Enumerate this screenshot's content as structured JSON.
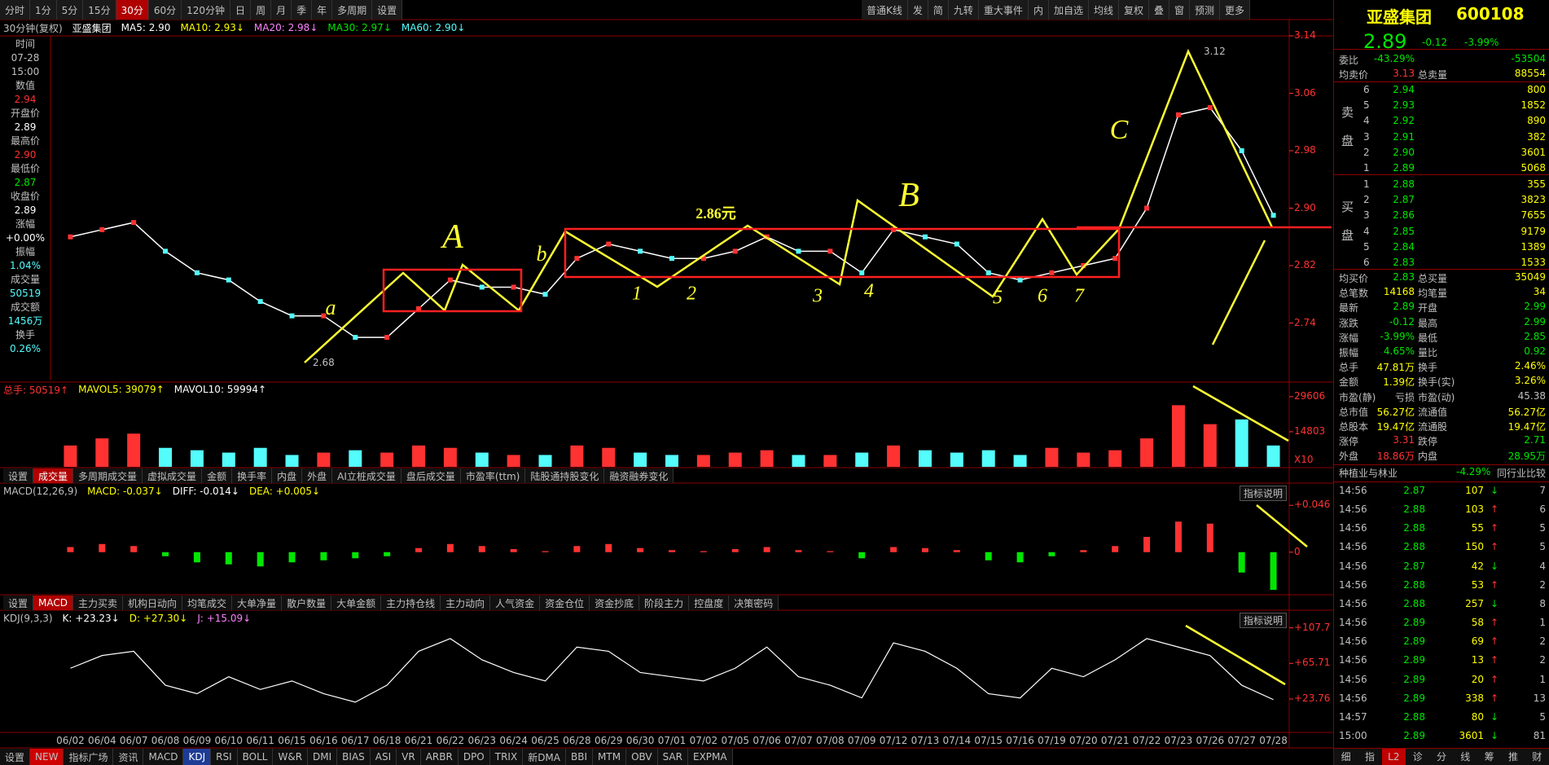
{
  "toolbar": {
    "left": [
      "分时",
      "1分",
      "5分",
      "15分",
      "30分",
      "60分",
      "120分钟",
      "日",
      "周",
      "月",
      "季",
      "年",
      "多周期",
      "设置"
    ],
    "active": 4,
    "right": [
      "普通K线",
      "发",
      "简",
      "九转",
      "重大事件",
      "内",
      "加自选",
      "均线",
      "复权",
      "叠",
      "窗",
      "预测",
      "更多"
    ]
  },
  "chart_header": [
    {
      "text": "30分钟(复权)",
      "color": "#c0c0c0"
    },
    {
      "text": "亚盛集团",
      "color": "#ffffff"
    },
    {
      "text": "MA5: 2.90",
      "color": "#ffffff"
    },
    {
      "text": "MA10: 2.93↓",
      "color": "#ffff00"
    },
    {
      "text": "MA20: 2.98↓",
      "color": "#ff80ff"
    },
    {
      "text": "MA30: 2.97↓",
      "color": "#00e600"
    },
    {
      "text": "MA60: 2.90↓",
      "color": "#54fcfc"
    }
  ],
  "info_panel": [
    {
      "text": "时间",
      "color": "#c0c0c0"
    },
    {
      "text": "07-28",
      "color": "#c0c0c0"
    },
    {
      "text": "15:00",
      "color": "#c0c0c0"
    },
    {
      "text": "数值",
      "color": "#c0c0c0"
    },
    {
      "text": "2.94",
      "color": "#ff3232"
    },
    {
      "text": "开盘价",
      "color": "#c0c0c0"
    },
    {
      "text": "2.89",
      "color": "#ffffff"
    },
    {
      "text": "最高价",
      "color": "#c0c0c0"
    },
    {
      "text": "2.90",
      "color": "#ff3232"
    },
    {
      "text": "最低价",
      "color": "#c0c0c0"
    },
    {
      "text": "2.87",
      "color": "#00e600"
    },
    {
      "text": "收盘价",
      "color": "#c0c0c0"
    },
    {
      "text": "2.89",
      "color": "#ffffff"
    },
    {
      "text": "涨幅",
      "color": "#c0c0c0"
    },
    {
      "text": "+0.00%",
      "color": "#ffffff"
    },
    {
      "text": "振幅",
      "color": "#c0c0c0"
    },
    {
      "text": "1.04%",
      "color": "#54fcfc"
    },
    {
      "text": "成交量",
      "color": "#c0c0c0"
    },
    {
      "text": "50519",
      "color": "#54fcfc"
    },
    {
      "text": "成交额",
      "color": "#c0c0c0"
    },
    {
      "text": "1456万",
      "color": "#54fcfc"
    },
    {
      "text": "换手",
      "color": "#c0c0c0"
    },
    {
      "text": "0.26%",
      "color": "#54fcfc"
    }
  ],
  "price_chart": {
    "dates": [
      "06/02",
      "06/04",
      "06/07",
      "06/08",
      "06/09",
      "06/10",
      "06/11",
      "06/15",
      "06/16",
      "06/17",
      "06/18",
      "06/21",
      "06/22",
      "06/23",
      "06/24",
      "06/25",
      "06/28",
      "06/29",
      "06/30",
      "07/01",
      "07/02",
      "07/05",
      "07/06",
      "07/07",
      "07/08",
      "07/09",
      "07/12",
      "07/13",
      "07/14",
      "07/15",
      "07/16",
      "07/19",
      "07/20",
      "07/21",
      "07/22",
      "07/23",
      "07/26",
      "07/27",
      "07/28"
    ],
    "close": [
      2.86,
      2.87,
      2.88,
      2.84,
      2.81,
      2.8,
      2.77,
      2.75,
      2.75,
      2.72,
      2.72,
      2.76,
      2.8,
      2.79,
      2.79,
      2.78,
      2.83,
      2.85,
      2.84,
      2.83,
      2.83,
      2.84,
      2.86,
      2.84,
      2.84,
      2.81,
      2.87,
      2.86,
      2.85,
      2.81,
      2.8,
      2.81,
      2.82,
      2.83,
      2.9,
      3.03,
      3.04,
      2.98,
      2.89
    ],
    "ylim": [
      2.66,
      3.14
    ],
    "yticks": [
      2.74,
      2.82,
      {
        "value": 2.9,
        "label": "2.90"
      },
      2.98,
      3.06,
      3.14
    ],
    "high_label": "3.12",
    "low_label": "2.68",
    "line_color": "#ffffff",
    "up_color": "#ff3232",
    "down_color": "#54fcfc",
    "annotations": [
      "a",
      "A",
      "b",
      "2.86元",
      "1",
      "2",
      "3",
      "4",
      "B",
      "5",
      "6",
      "7",
      "C"
    ]
  },
  "volume": {
    "header": [
      {
        "text": "总手: 50519↑",
        "color": "#ff3232"
      },
      {
        "text": "MAVOL5: 39079↑",
        "color": "#ffff00"
      },
      {
        "text": "MAVOL10: 59994↑",
        "color": "#ffffff"
      }
    ],
    "values": [
      9000,
      12000,
      14000,
      8000,
      7000,
      6000,
      8000,
      5000,
      6000,
      7000,
      6000,
      9000,
      8000,
      6000,
      5000,
      5000,
      9000,
      8000,
      6000,
      5000,
      5000,
      6000,
      7000,
      5000,
      5000,
      6000,
      9000,
      7000,
      6000,
      7000,
      5000,
      8000,
      6000,
      7000,
      12000,
      26000,
      18000,
      20000,
      9000
    ],
    "ylim": [
      0,
      33000
    ],
    "yticks": [
      14803,
      29606
    ],
    "unit": "X10"
  },
  "tabs1": [
    "设置",
    "成交量",
    "多周期成交量",
    "虚拟成交量",
    "金额",
    "换手率",
    "内盘",
    "外盘",
    "AI立桩成交量",
    "盘后成交量",
    "市盈率(ttm)",
    "陆股通持股变化",
    "融资融券变化"
  ],
  "macd": {
    "header": [
      {
        "text": "MACD(12,26,9)",
        "color": "#c0c0c0"
      },
      {
        "text": "MACD: -0.037↓",
        "color": "#ffff00"
      },
      {
        "text": "DIFF: -0.014↓",
        "color": "#ffffff"
      },
      {
        "text": "DEA: +0.005↓",
        "color": "#ffff00"
      }
    ],
    "explain": "指标说明",
    "values": [
      0.005,
      0.008,
      0.006,
      -0.004,
      -0.01,
      -0.012,
      -0.014,
      -0.01,
      -0.008,
      -0.006,
      -0.004,
      0.004,
      0.008,
      0.006,
      0.003,
      0.001,
      0.006,
      0.008,
      0.004,
      0.002,
      0.001,
      0.003,
      0.005,
      0.002,
      0.001,
      -0.006,
      0.005,
      0.004,
      0.002,
      -0.008,
      -0.01,
      -0.004,
      0.002,
      0.006,
      0.015,
      0.03,
      0.028,
      -0.02,
      -0.037
    ],
    "ylim": [
      -0.041,
      0.067
    ],
    "yticks": [
      0,
      {
        "value": 0.046,
        "label": "+0.046"
      }
    ],
    "up_color": "#ff3232",
    "down_color": "#00e600"
  },
  "tabs2": [
    "设置",
    "MACD",
    "主力买卖",
    "机构日动向",
    "均笔成交",
    "大单净量",
    "散户数量",
    "大单金额",
    "主力持仓线",
    "主力动向",
    "人气资金",
    "资金仓位",
    "资金抄底",
    "阶段主力",
    "控盘度",
    "决策密码"
  ],
  "kdj": {
    "header": [
      {
        "text": "KDJ(9,3,3)",
        "color": "#c0c0c0"
      },
      {
        "text": "K: +23.23↓",
        "color": "#ffffff"
      },
      {
        "text": "D: +27.30↓",
        "color": "#ffff00"
      },
      {
        "text": "J: +15.09↓",
        "color": "#ff80ff"
      }
    ],
    "explain": "指标说明",
    "values": [
      60,
      75,
      80,
      40,
      30,
      50,
      35,
      45,
      30,
      20,
      40,
      80,
      95,
      70,
      55,
      45,
      85,
      80,
      55,
      50,
      45,
      60,
      85,
      50,
      40,
      25,
      90,
      80,
      60,
      30,
      25,
      60,
      50,
      70,
      95,
      85,
      75,
      40,
      23
    ],
    "ylim": [
      -14.7,
      127.5
    ],
    "yticks": [
      {
        "value": 23.76,
        "label": "+23.76"
      },
      {
        "value": 65.71,
        "label": "+65.71"
      },
      {
        "value": 107.7,
        "label": "+107.7"
      }
    ],
    "color": "#ffffff"
  },
  "bottom_tabs": [
    "设置",
    "NEW",
    "指标广场",
    "资讯",
    "MACD",
    "KDJ",
    "RSI",
    "BOLL",
    "W&R",
    "DMI",
    "BIAS",
    "ASI",
    "VR",
    "ARBR",
    "DPO",
    "TRIX",
    "新DMA",
    "BBI",
    "MTM",
    "OBV",
    "SAR",
    "EXPMA"
  ],
  "bottom_active": 5,
  "bottom_badge": 1,
  "quote": {
    "name": "亚盛集团",
    "code": "600108",
    "price": "2.89",
    "change": "-0.12",
    "pct": "-3.99%",
    "weibi": [
      "委比",
      {
        "text": "-43.29%",
        "color": "#00e600"
      },
      "",
      {
        "text": "-53504",
        "color": "#00e600"
      }
    ],
    "avg_sell": [
      "均卖价",
      {
        "text": "3.13",
        "color": "#ff3232"
      },
      "总卖量",
      {
        "text": "88554",
        "color": "#ffff00"
      }
    ],
    "sell_label": "卖盘",
    "buy_label": "买盘",
    "sell": [
      [
        "6",
        "2.94",
        "800"
      ],
      [
        "5",
        "2.93",
        "1852"
      ],
      [
        "4",
        "2.92",
        "890"
      ],
      [
        "3",
        "2.91",
        "382"
      ],
      [
        "2",
        "2.90",
        "3601"
      ],
      [
        "1",
        "2.89",
        "5068"
      ]
    ],
    "buy": [
      [
        "1",
        "2.88",
        "355"
      ],
      [
        "2",
        "2.87",
        "3823"
      ],
      [
        "3",
        "2.86",
        "7655"
      ],
      [
        "4",
        "2.85",
        "9179"
      ],
      [
        "5",
        "2.84",
        "1389"
      ],
      [
        "6",
        "2.83",
        "1533"
      ]
    ],
    "stats": [
      [
        "均买价",
        {
          "text": "2.83",
          "color": "#00e600"
        },
        "总买量",
        {
          "text": "35049",
          "color": "#ffff00"
        }
      ],
      [
        "总笔数",
        {
          "text": "14168",
          "color": "#ffff00"
        },
        "均笔量",
        {
          "text": "34",
          "color": "#ffff00"
        }
      ],
      [
        "最新",
        {
          "text": "2.89",
          "color": "#00e600"
        },
        "开盘",
        {
          "text": "2.99",
          "color": "#00e600"
        }
      ],
      [
        "涨跌",
        {
          "text": "-0.12",
          "color": "#00e600"
        },
        "最高",
        {
          "text": "2.99",
          "color": "#00e600"
        }
      ],
      [
        "涨幅",
        {
          "text": "-3.99%",
          "color": "#00e600"
        },
        "最低",
        {
          "text": "2.85",
          "color": "#00e600"
        }
      ],
      [
        "振幅",
        {
          "text": "4.65%",
          "color": "#00e600"
        },
        "量比",
        {
          "text": "0.92",
          "color": "#00e600"
        }
      ],
      [
        "总手",
        {
          "text": "47.81万",
          "color": "#ffff00"
        },
        "换手",
        {
          "text": "2.46%",
          "color": "#ffff00"
        }
      ],
      [
        "金额",
        {
          "text": "1.39亿",
          "color": "#ffff00"
        },
        "换手(实)",
        {
          "text": "3.26%",
          "color": "#ffff00"
        }
      ],
      [
        "市盈(静)",
        {
          "text": "亏损",
          "color": "#c0c0c0"
        },
        "市盈(动)",
        {
          "text": "45.38",
          "color": "#c0c0c0"
        }
      ],
      [
        "总市值",
        {
          "text": "56.27亿",
          "color": "#ffff00"
        },
        "流通值",
        {
          "text": "56.27亿",
          "color": "#ffff00"
        }
      ],
      [
        "总股本",
        {
          "text": "19.47亿",
          "color": "#ffff00"
        },
        "流通股",
        {
          "text": "19.47亿",
          "color": "#ffff00"
        }
      ],
      [
        "涨停",
        {
          "text": "3.31",
          "color": "#ff3232"
        },
        "跌停",
        {
          "text": "2.71",
          "color": "#00e600"
        }
      ],
      [
        "外盘",
        {
          "text": "18.86万",
          "color": "#ff3232"
        },
        "内盘",
        {
          "text": "28.95万",
          "color": "#00e600"
        }
      ]
    ],
    "industry": [
      "种植业与林业",
      "-4.29%",
      "同行业比较"
    ],
    "ticks": [
      [
        "14:56",
        "2.87",
        "107",
        "↓",
        "7"
      ],
      [
        "14:56",
        "2.88",
        "103",
        "↑",
        "6"
      ],
      [
        "14:56",
        "2.88",
        "55",
        "↑",
        "5"
      ],
      [
        "14:56",
        "2.88",
        "150",
        "↑",
        "5"
      ],
      [
        "14:56",
        "2.87",
        "42",
        "↓",
        "4"
      ],
      [
        "14:56",
        "2.88",
        "53",
        "↑",
        "2"
      ],
      [
        "14:56",
        "2.88",
        "257",
        "↓",
        "8"
      ],
      [
        "14:56",
        "2.89",
        "58",
        "↑",
        "1"
      ],
      [
        "14:56",
        "2.89",
        "69",
        "↑",
        "2"
      ],
      [
        "14:56",
        "2.89",
        "13",
        "↑",
        "2"
      ],
      [
        "14:56",
        "2.89",
        "20",
        "↑",
        "1"
      ],
      [
        "14:56",
        "2.89",
        "338",
        "↑",
        "13"
      ],
      [
        "14:57",
        "2.88",
        "80",
        "↓",
        "5"
      ],
      [
        "15:00",
        "2.89",
        "3601",
        "↓",
        "81"
      ]
    ],
    "bottom": [
      "细",
      "指",
      "L2",
      "诊",
      "分",
      "线",
      "筹",
      "推",
      "财"
    ]
  }
}
